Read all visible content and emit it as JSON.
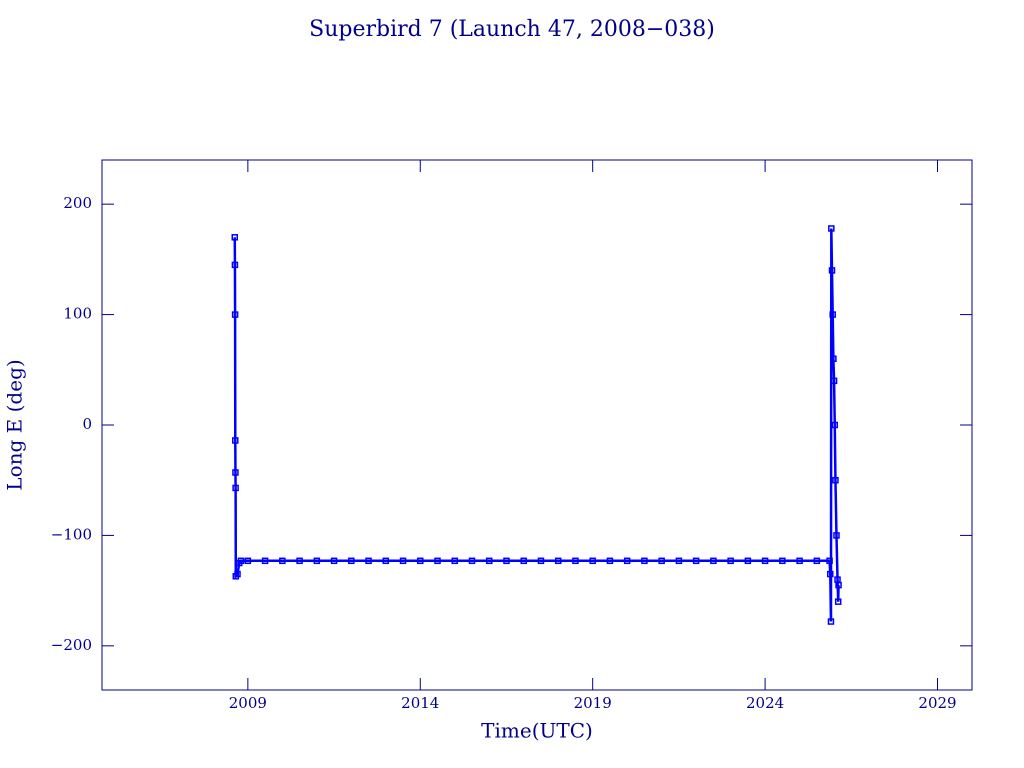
{
  "chart_data": {
    "type": "line",
    "title": "Superbird 7 (Launch 47, 2008−038)",
    "x_label": "Time(UTC)",
    "y_label": "Long E (deg)",
    "color": "#0000ff",
    "axis_color": "#00008b",
    "markers": true,
    "xlim": [
      2004.77,
      2030.0
    ],
    "ylim": [
      -240,
      240
    ],
    "xticks": [
      2009,
      2014,
      2019,
      2024,
      2029
    ],
    "yticks": [
      {
        "value": -200,
        "label": "−200"
      },
      {
        "value": -100,
        "label": "−100"
      },
      0,
      100,
      200
    ],
    "x": [
      2008.62,
      2008.625,
      2008.63,
      2008.635,
      2008.64,
      2008.645,
      2008.65,
      2008.7,
      2008.75,
      2008.8,
      2009.0,
      2009.5,
      2010.0,
      2010.5,
      2011.0,
      2011.5,
      2012.0,
      2012.5,
      2013.0,
      2013.5,
      2014.0,
      2014.5,
      2015.0,
      2015.5,
      2016.0,
      2016.5,
      2017.0,
      2017.5,
      2018.0,
      2018.5,
      2019.0,
      2019.5,
      2020.0,
      2020.5,
      2021.0,
      2021.5,
      2022.0,
      2022.5,
      2023.0,
      2023.5,
      2024.0,
      2024.5,
      2025.0,
      2025.5,
      2025.87,
      2025.89,
      2025.91,
      2025.92,
      2025.94,
      2025.96,
      2025.98,
      2026.0,
      2026.02,
      2026.04,
      2026.07,
      2026.1,
      2026.12,
      2026.13
    ],
    "values": [
      170,
      145,
      100,
      -14,
      -43,
      -57,
      -137,
      -135,
      -125,
      -123,
      -123,
      -123,
      -123,
      -123,
      -123,
      -123,
      -123,
      -123,
      -123,
      -123,
      -123,
      -123,
      -123,
      -123,
      -123,
      -123,
      -123,
      -123,
      -123,
      -123,
      -123,
      -123,
      -123,
      -123,
      -123,
      -123,
      -123,
      -123,
      -123,
      -123,
      -123,
      -123,
      -123,
      -123,
      -123,
      -135,
      -178,
      178,
      140,
      100,
      60,
      40,
      0,
      -50,
      -100,
      -140,
      -160,
      -145
    ]
  }
}
